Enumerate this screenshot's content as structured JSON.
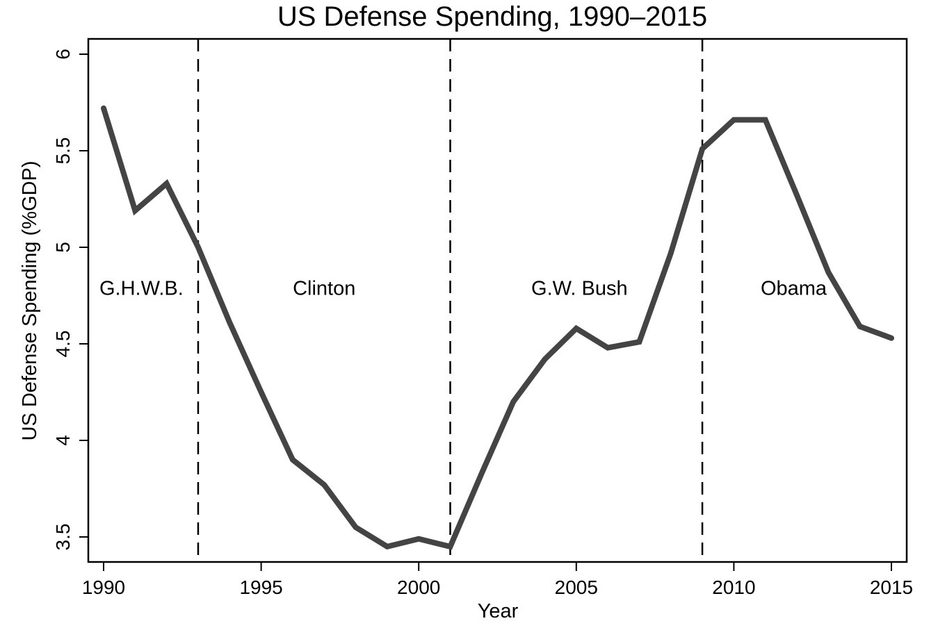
{
  "chart_data": {
    "type": "line",
    "title": "US Defense Spending, 1990–2015",
    "xlabel": "Year",
    "ylabel": "US Defense Spending (%GDP)",
    "xlim": [
      1990,
      2015
    ],
    "ylim": [
      3.5,
      6
    ],
    "grid": false,
    "legend": "none",
    "x_ticks": [
      1990,
      1995,
      2000,
      2005,
      2010,
      2015
    ],
    "x_tick_labels": [
      "1990",
      "1995",
      "2000",
      "2005",
      "2010",
      "2015"
    ],
    "y_ticks": [
      3.5,
      4,
      4.5,
      5,
      5.5,
      6
    ],
    "y_tick_labels": [
      "3.5",
      "4",
      "4.5",
      "5",
      "5.5",
      "6"
    ],
    "series": [
      {
        "name": "US Defense Spending (%GDP)",
        "color": "#444444",
        "x": [
          1990,
          1991,
          1992,
          1993,
          1994,
          1995,
          1996,
          1997,
          1998,
          1999,
          2000,
          2001,
          2002,
          2003,
          2004,
          2005,
          2006,
          2007,
          2008,
          2009,
          2010,
          2011,
          2012,
          2013,
          2014,
          2015
        ],
        "values": [
          5.72,
          5.19,
          5.33,
          5.0,
          4.61,
          4.25,
          3.9,
          3.77,
          3.55,
          3.45,
          3.49,
          3.45,
          3.83,
          4.2,
          4.42,
          4.58,
          4.48,
          4.51,
          4.97,
          5.51,
          5.66,
          5.66,
          5.27,
          4.87,
          4.59,
          4.53
        ]
      }
    ],
    "vertical_lines": [
      {
        "x": 1993,
        "style": "dashed"
      },
      {
        "x": 2001,
        "style": "dashed"
      },
      {
        "x": 2009,
        "style": "dashed"
      }
    ],
    "annotations": [
      {
        "text": "G.H.W.B.",
        "x": 1991.2,
        "y": 4.79
      },
      {
        "text": "Clinton",
        "x": 1997.0,
        "y": 4.79
      },
      {
        "text": "G.W. Bush",
        "x": 2005.1,
        "y": 4.79
      },
      {
        "text": "Obama",
        "x": 2011.9,
        "y": 4.79
      }
    ]
  }
}
